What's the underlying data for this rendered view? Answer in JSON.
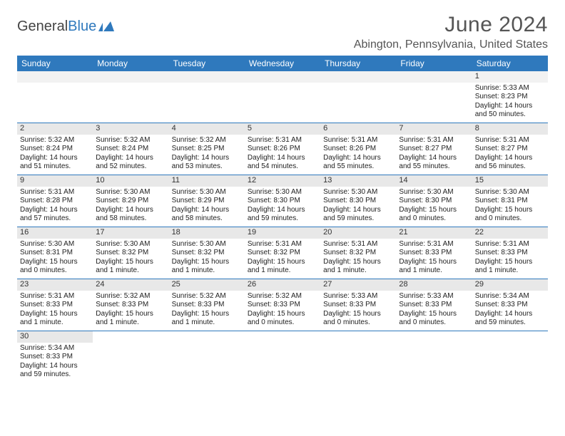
{
  "logo": {
    "text_a": "General",
    "text_b": "Blue",
    "icon_fill": "#2f79bd"
  },
  "title": "June 2024",
  "location": "Abington, Pennsylvania, United States",
  "colors": {
    "header_bg": "#2f79bd",
    "header_fg": "#ffffff",
    "daynum_bg": "#e8e8e8",
    "rule": "#2f79bd",
    "text": "#222222"
  },
  "weekdays": [
    "Sunday",
    "Monday",
    "Tuesday",
    "Wednesday",
    "Thursday",
    "Friday",
    "Saturday"
  ],
  "weeks": [
    [
      null,
      null,
      null,
      null,
      null,
      null,
      {
        "n": "1",
        "sunrise": "Sunrise: 5:33 AM",
        "sunset": "Sunset: 8:23 PM",
        "daylight": "Daylight: 14 hours and 50 minutes."
      }
    ],
    [
      {
        "n": "2",
        "sunrise": "Sunrise: 5:32 AM",
        "sunset": "Sunset: 8:24 PM",
        "daylight": "Daylight: 14 hours and 51 minutes."
      },
      {
        "n": "3",
        "sunrise": "Sunrise: 5:32 AM",
        "sunset": "Sunset: 8:24 PM",
        "daylight": "Daylight: 14 hours and 52 minutes."
      },
      {
        "n": "4",
        "sunrise": "Sunrise: 5:32 AM",
        "sunset": "Sunset: 8:25 PM",
        "daylight": "Daylight: 14 hours and 53 minutes."
      },
      {
        "n": "5",
        "sunrise": "Sunrise: 5:31 AM",
        "sunset": "Sunset: 8:26 PM",
        "daylight": "Daylight: 14 hours and 54 minutes."
      },
      {
        "n": "6",
        "sunrise": "Sunrise: 5:31 AM",
        "sunset": "Sunset: 8:26 PM",
        "daylight": "Daylight: 14 hours and 55 minutes."
      },
      {
        "n": "7",
        "sunrise": "Sunrise: 5:31 AM",
        "sunset": "Sunset: 8:27 PM",
        "daylight": "Daylight: 14 hours and 55 minutes."
      },
      {
        "n": "8",
        "sunrise": "Sunrise: 5:31 AM",
        "sunset": "Sunset: 8:27 PM",
        "daylight": "Daylight: 14 hours and 56 minutes."
      }
    ],
    [
      {
        "n": "9",
        "sunrise": "Sunrise: 5:31 AM",
        "sunset": "Sunset: 8:28 PM",
        "daylight": "Daylight: 14 hours and 57 minutes."
      },
      {
        "n": "10",
        "sunrise": "Sunrise: 5:30 AM",
        "sunset": "Sunset: 8:29 PM",
        "daylight": "Daylight: 14 hours and 58 minutes."
      },
      {
        "n": "11",
        "sunrise": "Sunrise: 5:30 AM",
        "sunset": "Sunset: 8:29 PM",
        "daylight": "Daylight: 14 hours and 58 minutes."
      },
      {
        "n": "12",
        "sunrise": "Sunrise: 5:30 AM",
        "sunset": "Sunset: 8:30 PM",
        "daylight": "Daylight: 14 hours and 59 minutes."
      },
      {
        "n": "13",
        "sunrise": "Sunrise: 5:30 AM",
        "sunset": "Sunset: 8:30 PM",
        "daylight": "Daylight: 14 hours and 59 minutes."
      },
      {
        "n": "14",
        "sunrise": "Sunrise: 5:30 AM",
        "sunset": "Sunset: 8:30 PM",
        "daylight": "Daylight: 15 hours and 0 minutes."
      },
      {
        "n": "15",
        "sunrise": "Sunrise: 5:30 AM",
        "sunset": "Sunset: 8:31 PM",
        "daylight": "Daylight: 15 hours and 0 minutes."
      }
    ],
    [
      {
        "n": "16",
        "sunrise": "Sunrise: 5:30 AM",
        "sunset": "Sunset: 8:31 PM",
        "daylight": "Daylight: 15 hours and 0 minutes."
      },
      {
        "n": "17",
        "sunrise": "Sunrise: 5:30 AM",
        "sunset": "Sunset: 8:32 PM",
        "daylight": "Daylight: 15 hours and 1 minute."
      },
      {
        "n": "18",
        "sunrise": "Sunrise: 5:30 AM",
        "sunset": "Sunset: 8:32 PM",
        "daylight": "Daylight: 15 hours and 1 minute."
      },
      {
        "n": "19",
        "sunrise": "Sunrise: 5:31 AM",
        "sunset": "Sunset: 8:32 PM",
        "daylight": "Daylight: 15 hours and 1 minute."
      },
      {
        "n": "20",
        "sunrise": "Sunrise: 5:31 AM",
        "sunset": "Sunset: 8:32 PM",
        "daylight": "Daylight: 15 hours and 1 minute."
      },
      {
        "n": "21",
        "sunrise": "Sunrise: 5:31 AM",
        "sunset": "Sunset: 8:33 PM",
        "daylight": "Daylight: 15 hours and 1 minute."
      },
      {
        "n": "22",
        "sunrise": "Sunrise: 5:31 AM",
        "sunset": "Sunset: 8:33 PM",
        "daylight": "Daylight: 15 hours and 1 minute."
      }
    ],
    [
      {
        "n": "23",
        "sunrise": "Sunrise: 5:31 AM",
        "sunset": "Sunset: 8:33 PM",
        "daylight": "Daylight: 15 hours and 1 minute."
      },
      {
        "n": "24",
        "sunrise": "Sunrise: 5:32 AM",
        "sunset": "Sunset: 8:33 PM",
        "daylight": "Daylight: 15 hours and 1 minute."
      },
      {
        "n": "25",
        "sunrise": "Sunrise: 5:32 AM",
        "sunset": "Sunset: 8:33 PM",
        "daylight": "Daylight: 15 hours and 1 minute."
      },
      {
        "n": "26",
        "sunrise": "Sunrise: 5:32 AM",
        "sunset": "Sunset: 8:33 PM",
        "daylight": "Daylight: 15 hours and 0 minutes."
      },
      {
        "n": "27",
        "sunrise": "Sunrise: 5:33 AM",
        "sunset": "Sunset: 8:33 PM",
        "daylight": "Daylight: 15 hours and 0 minutes."
      },
      {
        "n": "28",
        "sunrise": "Sunrise: 5:33 AM",
        "sunset": "Sunset: 8:33 PM",
        "daylight": "Daylight: 15 hours and 0 minutes."
      },
      {
        "n": "29",
        "sunrise": "Sunrise: 5:34 AM",
        "sunset": "Sunset: 8:33 PM",
        "daylight": "Daylight: 14 hours and 59 minutes."
      }
    ],
    [
      {
        "n": "30",
        "sunrise": "Sunrise: 5:34 AM",
        "sunset": "Sunset: 8:33 PM",
        "daylight": "Daylight: 14 hours and 59 minutes."
      },
      null,
      null,
      null,
      null,
      null,
      null
    ]
  ]
}
